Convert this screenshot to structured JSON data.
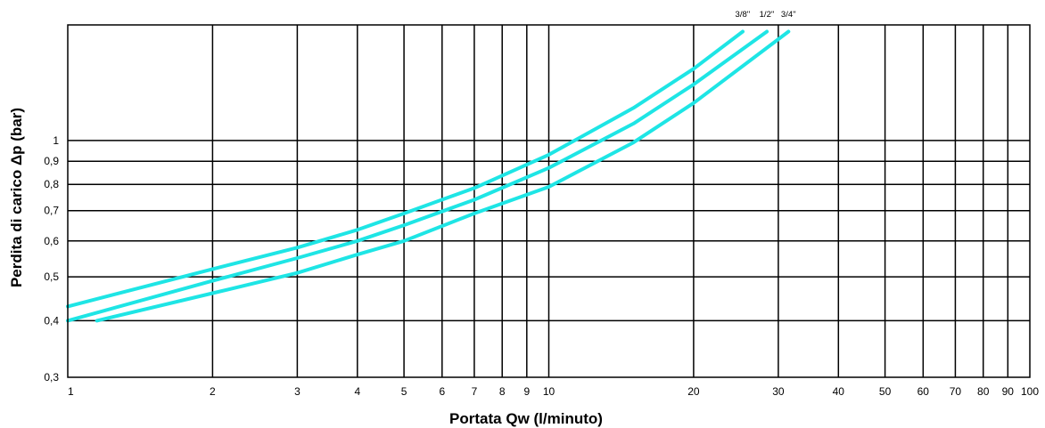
{
  "chart_data": {
    "type": "line",
    "title": "",
    "xlabel": "Portata  Qw (l/minuto)",
    "ylabel": "Perdita di carico Δp (bar)",
    "xscale": "log",
    "yscale": "log",
    "xlim": [
      1,
      100
    ],
    "ylim": [
      0.3,
      1.8
    ],
    "grid": true,
    "x_ticks": [
      1,
      2,
      3,
      4,
      5,
      6,
      7,
      8,
      9,
      10,
      20,
      30,
      40,
      50,
      60,
      70,
      80,
      90,
      100
    ],
    "x_tick_labels": [
      "1",
      "2",
      "3",
      "4",
      "5",
      "6",
      "7",
      "8",
      "9",
      "10",
      "20",
      "30",
      "40",
      "50",
      "60",
      "70",
      "80",
      "90",
      "100"
    ],
    "y_ticks": [
      0.3,
      0.4,
      0.5,
      0.6,
      0.7,
      0.8,
      0.9,
      1.0
    ],
    "y_tick_labels": [
      "0,3",
      "0,4",
      "0,5",
      "0,6",
      "0,7",
      "0,8",
      "0,9",
      "1"
    ],
    "line_color": "#1ee5e5",
    "series": [
      {
        "name": "3/8''",
        "x": [
          1,
          2,
          3,
          4,
          5,
          7,
          10,
          15,
          20,
          25.3
        ],
        "y": [
          0.43,
          0.52,
          0.58,
          0.635,
          0.69,
          0.785,
          0.93,
          1.18,
          1.44,
          1.74
        ]
      },
      {
        "name": "1/2''",
        "x": [
          1,
          2,
          3,
          4,
          5,
          7,
          10,
          15,
          20,
          28.4
        ],
        "y": [
          0.4,
          0.49,
          0.55,
          0.6,
          0.65,
          0.74,
          0.87,
          1.09,
          1.33,
          1.74
        ]
      },
      {
        "name": "3/4''",
        "x": [
          1.15,
          2,
          3,
          4,
          5,
          7,
          10,
          15,
          20,
          31.5
        ],
        "y": [
          0.4,
          0.46,
          0.51,
          0.56,
          0.6,
          0.69,
          0.79,
          0.99,
          1.21,
          1.74
        ]
      }
    ]
  }
}
